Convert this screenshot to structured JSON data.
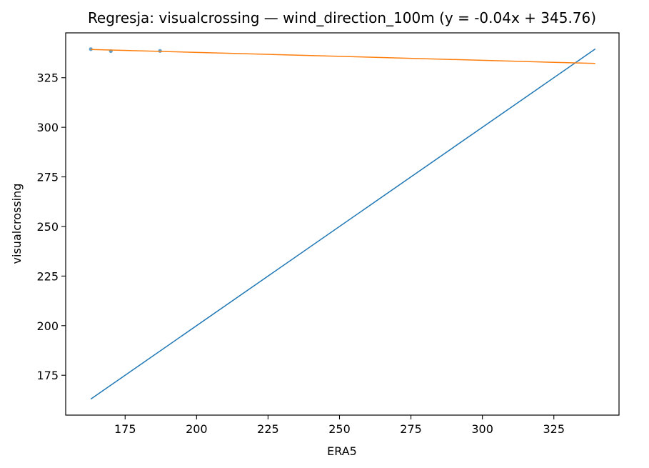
{
  "chart_data": {
    "type": "scatter",
    "title": "Regresja: visualcrossing — wind_direction_100m (y = -0.04x + 345.76)",
    "xlabel": "ERA5",
    "ylabel": "visualcrossing",
    "xlim": [
      154.2,
      347.8
    ],
    "ylim": [
      154.9,
      347.6
    ],
    "xticks": [
      175,
      200,
      225,
      250,
      275,
      300,
      325
    ],
    "yticks": [
      175,
      200,
      225,
      250,
      275,
      300,
      325
    ],
    "grid": false,
    "series": [
      {
        "kind": "scatter",
        "color": "#1f77b4",
        "points": [
          {
            "x": 163.0,
            "y": 339.4
          },
          {
            "x": 170.0,
            "y": 338.4
          },
          {
            "x": 187.2,
            "y": 338.5
          }
        ]
      },
      {
        "kind": "line",
        "color": "#1f77b4",
        "points": [
          {
            "x": 163.0,
            "y": 163.0
          },
          {
            "x": 339.5,
            "y": 339.5
          }
        ]
      },
      {
        "kind": "line",
        "color": "#ff7f0e",
        "points": [
          {
            "x": 163.0,
            "y": 339.24
          },
          {
            "x": 339.5,
            "y": 332.18
          }
        ]
      }
    ]
  }
}
